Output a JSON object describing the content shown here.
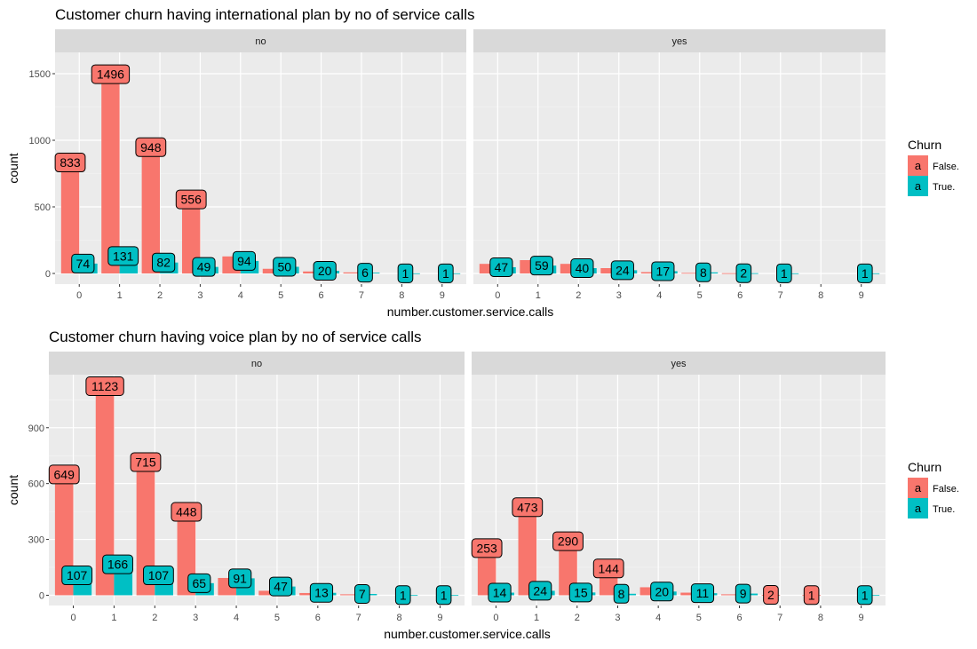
{
  "chart_data": [
    {
      "type": "bar",
      "title": "Customer churn having international plan by no of service calls",
      "xlabel": "number.customer.service.calls",
      "ylabel": "count",
      "categories": [
        "0",
        "1",
        "2",
        "3",
        "4",
        "5",
        "6",
        "7",
        "8",
        "9"
      ],
      "ylim": [
        -80,
        1660
      ],
      "yticks": [
        0,
        500,
        1000,
        1500
      ],
      "grid": true,
      "legend": {
        "title": "Churn",
        "position": "right",
        "key_glyph": "a",
        "entries": [
          "False.",
          "True."
        ]
      },
      "colors": {
        "False.": "#f8766d",
        "True.": "#00bfc4"
      },
      "facets": [
        {
          "label": "no",
          "series": [
            {
              "name": "False.",
              "values": [
                833,
                1496,
                948,
                556,
                128,
                35,
                15,
                8,
                0,
                0
              ],
              "labels": [
                "833",
                "1496",
                "948",
                "556",
                "",
                "",
                "",
                "",
                "",
                ""
              ]
            },
            {
              "name": "True.",
              "values": [
                74,
                131,
                82,
                49,
                94,
                50,
                20,
                6,
                1,
                1
              ],
              "labels": [
                "74",
                "131",
                "82",
                "49",
                "94",
                "50",
                "20",
                "6",
                "1",
                "1"
              ]
            }
          ]
        },
        {
          "label": "yes",
          "series": [
            {
              "name": "False.",
              "values": [
                72,
                100,
                72,
                40,
                10,
                4,
                2,
                0,
                0,
                0
              ],
              "labels": [
                "",
                "",
                "",
                "",
                "",
                "",
                "",
                "",
                "",
                ""
              ]
            },
            {
              "name": "True.",
              "values": [
                47,
                59,
                40,
                24,
                17,
                8,
                2,
                1,
                0,
                1
              ],
              "labels": [
                "47",
                "59",
                "40",
                "24",
                "17",
                "8",
                "2",
                "1",
                "",
                "1"
              ]
            }
          ]
        }
      ]
    },
    {
      "type": "bar",
      "title": "Customer churn having voice plan by no of service calls",
      "xlabel": "number.customer.service.calls",
      "ylabel": "count",
      "categories": [
        "0",
        "1",
        "2",
        "3",
        "4",
        "5",
        "6",
        "7",
        "8",
        "9"
      ],
      "ylim": [
        -55,
        1185
      ],
      "yticks": [
        0,
        300,
        600,
        900
      ],
      "grid": true,
      "legend": {
        "title": "Churn",
        "position": "right",
        "key_glyph": "a",
        "entries": [
          "False.",
          "True."
        ]
      },
      "colors": {
        "False.": "#f8766d",
        "True.": "#00bfc4"
      },
      "facets": [
        {
          "label": "no",
          "series": [
            {
              "name": "False.",
              "values": [
                649,
                1123,
                715,
                448,
                93,
                24,
                12,
                5,
                0,
                0
              ],
              "labels": [
                "649",
                "1123",
                "715",
                "448",
                "",
                "",
                "",
                "",
                "",
                ""
              ]
            },
            {
              "name": "True.",
              "values": [
                107,
                166,
                107,
                65,
                91,
                47,
                13,
                7,
                1,
                1
              ],
              "labels": [
                "107",
                "166",
                "107",
                "65",
                "91",
                "47",
                "13",
                "7",
                "1",
                "1"
              ]
            }
          ]
        },
        {
          "label": "yes",
          "series": [
            {
              "name": "False.",
              "values": [
                253,
                473,
                290,
                144,
                43,
                14,
                5,
                2,
                1,
                0
              ],
              "labels": [
                "253",
                "473",
                "290",
                "144",
                "",
                "",
                "",
                "2",
                "1",
                ""
              ]
            },
            {
              "name": "True.",
              "values": [
                14,
                24,
                15,
                8,
                20,
                11,
                9,
                0,
                0,
                1
              ],
              "labels": [
                "14",
                "24",
                "15",
                "8",
                "20",
                "11",
                "9",
                "",
                "",
                "1"
              ]
            }
          ]
        }
      ]
    }
  ]
}
